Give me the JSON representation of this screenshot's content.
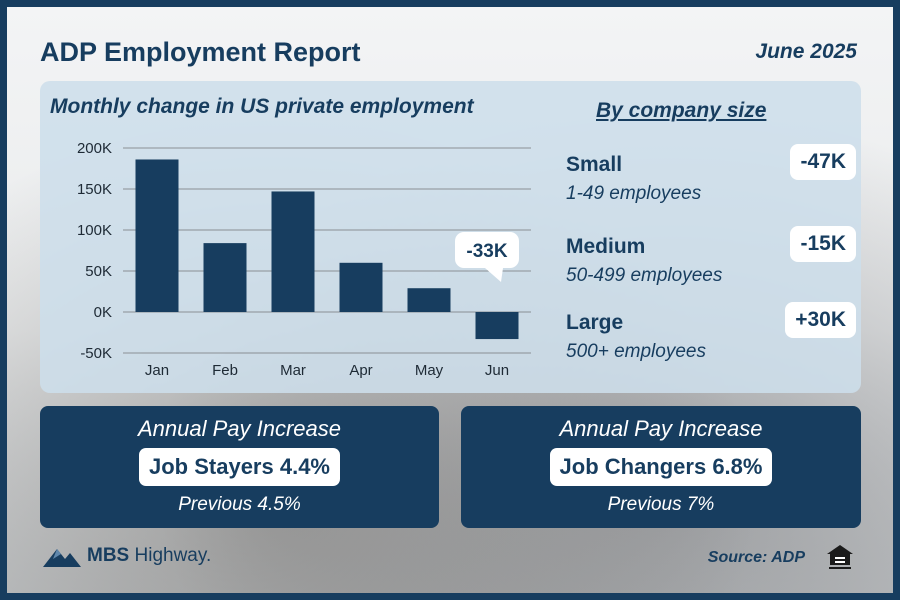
{
  "header": {
    "title": "ADP Employment Report",
    "date": "June 2025"
  },
  "chart_data": {
    "type": "bar",
    "title": "Monthly change in US private employment",
    "categories": [
      "Jan",
      "Feb",
      "Mar",
      "Apr",
      "May",
      "Jun"
    ],
    "values": [
      186000,
      84000,
      147000,
      60000,
      29000,
      -33000
    ],
    "ylim": [
      -50000,
      200000
    ],
    "yticks": [
      200000,
      150000,
      100000,
      50000,
      0,
      -50000
    ],
    "ytick_labels": [
      "200K",
      "150K",
      "100K",
      "50K",
      "0K",
      "-50K"
    ],
    "grid": true,
    "colors": {
      "bar": "#173d5f",
      "grid": "#8a8f94"
    },
    "callout": {
      "category": "Jun",
      "text": "-33K"
    }
  },
  "company_size": {
    "heading": "By company size",
    "items": [
      {
        "name": "Small",
        "range": "1-49 employees",
        "change": "-47K"
      },
      {
        "name": "Medium",
        "range": "50-499 employees",
        "change": "-15K"
      },
      {
        "name": "Large",
        "range": "500+ employees",
        "change": "+30K"
      }
    ]
  },
  "pay": {
    "stayers": {
      "label": "Annual Pay Increase",
      "value": "Job Stayers 4.4%",
      "previous": "Previous 4.5%"
    },
    "changers": {
      "label": "Annual Pay Increase",
      "value": "Job Changers 6.8%",
      "previous": "Previous 7%"
    }
  },
  "footer": {
    "logo_bold": "MBS",
    "logo_light": " Highway.",
    "source": "Source: ADP",
    "logo_icon": "mountain-logo-icon",
    "eho_icon": "equal-housing-icon"
  },
  "theme": {
    "primary": "#173d5f",
    "panel": "#cddeeb"
  }
}
